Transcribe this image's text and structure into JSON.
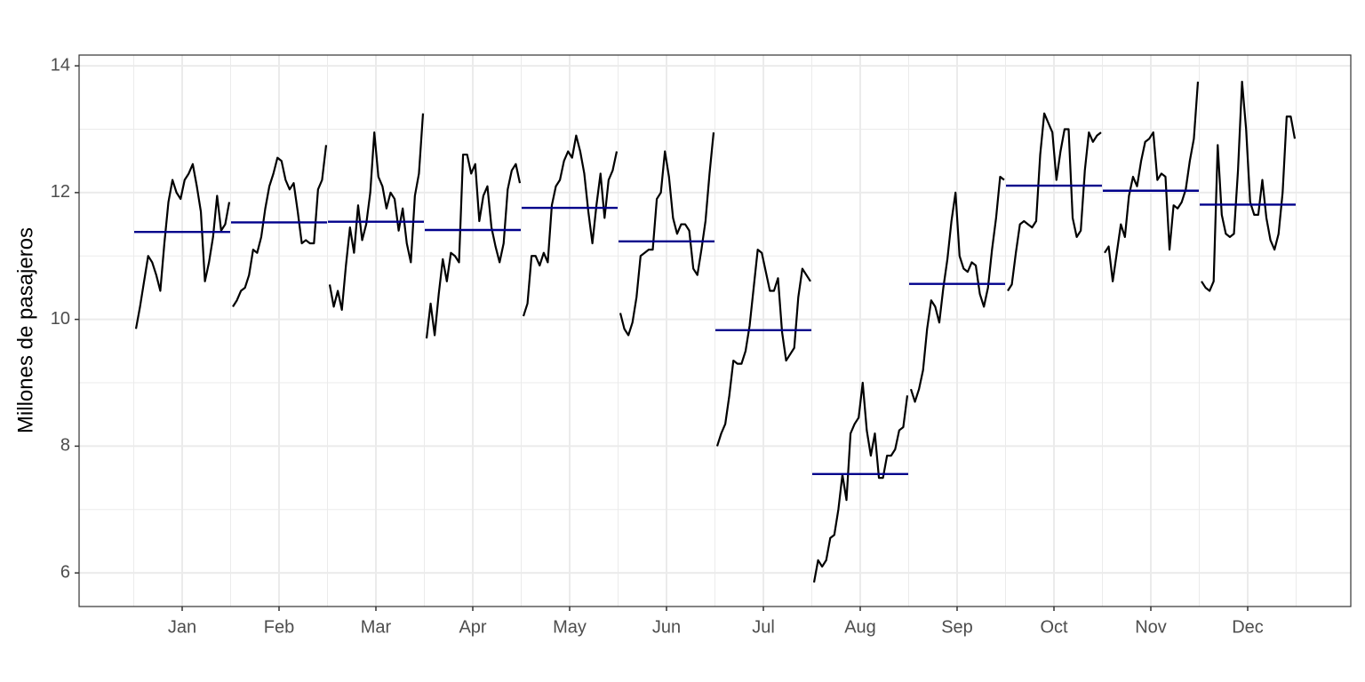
{
  "chart_data": {
    "type": "seasonal-subseries",
    "ylabel": "Millones de pasajeros",
    "categories": [
      "Jan",
      "Feb",
      "Mar",
      "Apr",
      "May",
      "Jun",
      "Jul",
      "Aug",
      "Sep",
      "Oct",
      "Nov",
      "Dec"
    ],
    "values": [
      [
        9.85,
        10.2,
        10.6,
        11.0,
        10.9,
        10.7,
        10.45,
        11.2,
        11.85,
        12.2,
        12.0,
        11.9,
        12.2,
        12.3,
        12.45,
        12.1,
        11.7,
        10.6,
        10.9,
        11.3,
        11.95,
        11.4,
        11.5,
        11.85
      ],
      [
        10.2,
        10.3,
        10.45,
        10.5,
        10.7,
        11.1,
        11.05,
        11.3,
        11.75,
        12.1,
        12.3,
        12.55,
        12.5,
        12.2,
        12.05,
        12.15,
        11.7,
        11.2,
        11.25,
        11.2,
        11.2,
        12.05,
        12.2,
        12.75
      ],
      [
        10.55,
        10.2,
        10.45,
        10.15,
        10.85,
        11.45,
        11.05,
        11.8,
        11.25,
        11.5,
        12.0,
        12.95,
        12.25,
        12.1,
        11.75,
        12.0,
        11.9,
        11.4,
        11.75,
        11.2,
        10.9,
        11.95,
        12.3,
        13.25
      ],
      [
        9.7,
        10.25,
        9.75,
        10.4,
        10.95,
        10.6,
        11.05,
        11.0,
        10.9,
        12.6,
        12.6,
        12.3,
        12.45,
        11.55,
        11.95,
        12.1,
        11.45,
        11.15,
        10.9,
        11.2,
        12.05,
        12.35,
        12.45,
        12.15
      ],
      [
        10.05,
        10.25,
        11.0,
        11.0,
        10.85,
        11.05,
        10.9,
        11.8,
        12.1,
        12.2,
        12.5,
        12.65,
        12.55,
        12.9,
        12.65,
        12.3,
        11.7,
        11.2,
        11.8,
        12.3,
        11.6,
        12.2,
        12.35,
        12.65
      ],
      [
        10.1,
        9.85,
        9.75,
        9.95,
        10.35,
        11.0,
        11.05,
        11.1,
        11.1,
        11.9,
        12.0,
        12.65,
        12.25,
        11.6,
        11.35,
        11.5,
        11.5,
        11.4,
        10.8,
        10.7,
        11.1,
        11.55,
        12.3,
        12.95
      ],
      [
        8.0,
        8.2,
        8.35,
        8.8,
        9.35,
        9.3,
        9.3,
        9.5,
        9.9,
        10.5,
        11.1,
        11.05,
        10.75,
        10.45,
        10.45,
        10.65,
        9.8,
        9.35,
        9.45,
        9.55,
        10.35,
        10.8,
        10.7,
        10.6
      ],
      [
        5.85,
        6.2,
        6.1,
        6.2,
        6.55,
        6.6,
        7.0,
        7.55,
        7.15,
        8.2,
        8.35,
        8.45,
        9.0,
        8.25,
        7.85,
        8.2,
        7.5,
        7.5,
        7.85,
        7.85,
        7.95,
        8.25,
        8.3,
        8.8
      ],
      [
        8.9,
        8.7,
        8.9,
        9.2,
        9.85,
        10.3,
        10.2,
        9.95,
        10.5,
        10.95,
        11.55,
        12.0,
        11.0,
        10.8,
        10.75,
        10.9,
        10.85,
        10.4,
        10.2,
        10.5,
        11.1,
        11.6,
        12.25,
        12.2
      ],
      [
        10.45,
        10.55,
        11.05,
        11.5,
        11.55,
        11.5,
        11.45,
        11.55,
        12.6,
        13.25,
        13.1,
        12.95,
        12.2,
        12.65,
        13.0,
        13.0,
        11.6,
        11.3,
        11.4,
        12.35,
        12.95,
        12.8,
        12.9,
        12.95
      ],
      [
        11.05,
        11.15,
        10.6,
        11.05,
        11.5,
        11.3,
        11.95,
        12.25,
        12.1,
        12.5,
        12.8,
        12.85,
        12.95,
        12.2,
        12.3,
        12.25,
        11.1,
        11.8,
        11.75,
        11.85,
        12.05,
        12.5,
        12.85,
        13.75
      ],
      [
        10.6,
        10.5,
        10.45,
        10.6,
        12.75,
        11.65,
        11.35,
        11.3,
        11.35,
        12.35,
        13.75,
        13.0,
        11.85,
        11.65,
        11.65,
        12.2,
        11.6,
        11.25,
        11.1,
        11.35,
        12.0,
        13.2,
        13.2,
        12.85
      ]
    ],
    "means": [
      11.38,
      11.53,
      11.54,
      11.41,
      11.76,
      11.23,
      9.83,
      7.56,
      10.56,
      12.11,
      12.03,
      11.81
    ],
    "line_color": "#000000",
    "mean_color": "#00008b",
    "ylim": [
      5.47,
      14.17
    ],
    "yticks": [
      6,
      8,
      10,
      12,
      14
    ],
    "grid": true
  }
}
